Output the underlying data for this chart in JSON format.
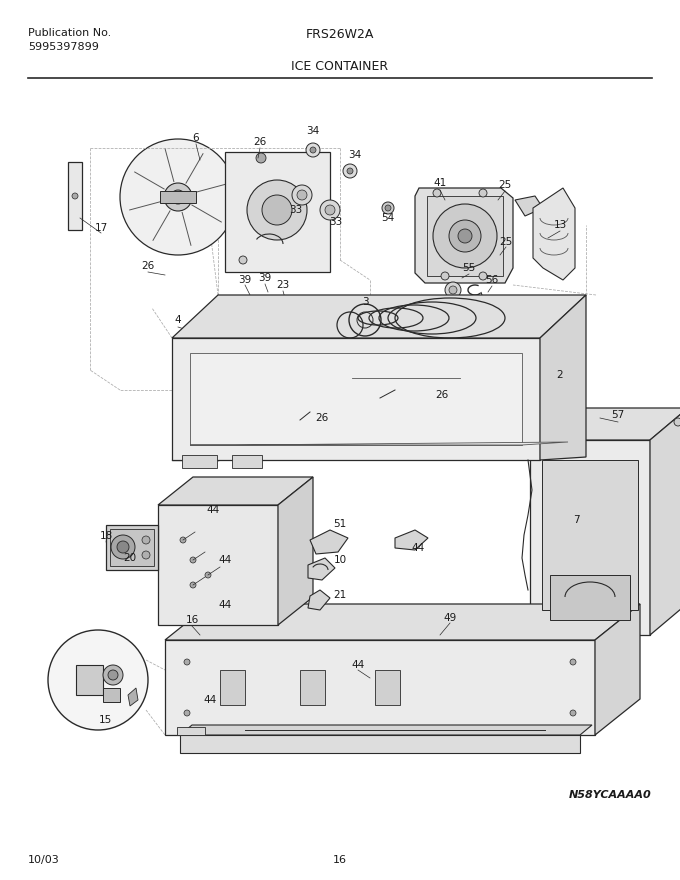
{
  "title_left_line1": "Publication No.",
  "title_left_line2": "5995397899",
  "title_center_top": "FRS26W2A",
  "title_center_bottom": "ICE CONTAINER",
  "footer_left": "10/03",
  "footer_center": "16",
  "watermark": "N58YCAAAA0",
  "bg_color": "#ffffff",
  "line_color": "#000000",
  "text_color": "#1a1a1a"
}
